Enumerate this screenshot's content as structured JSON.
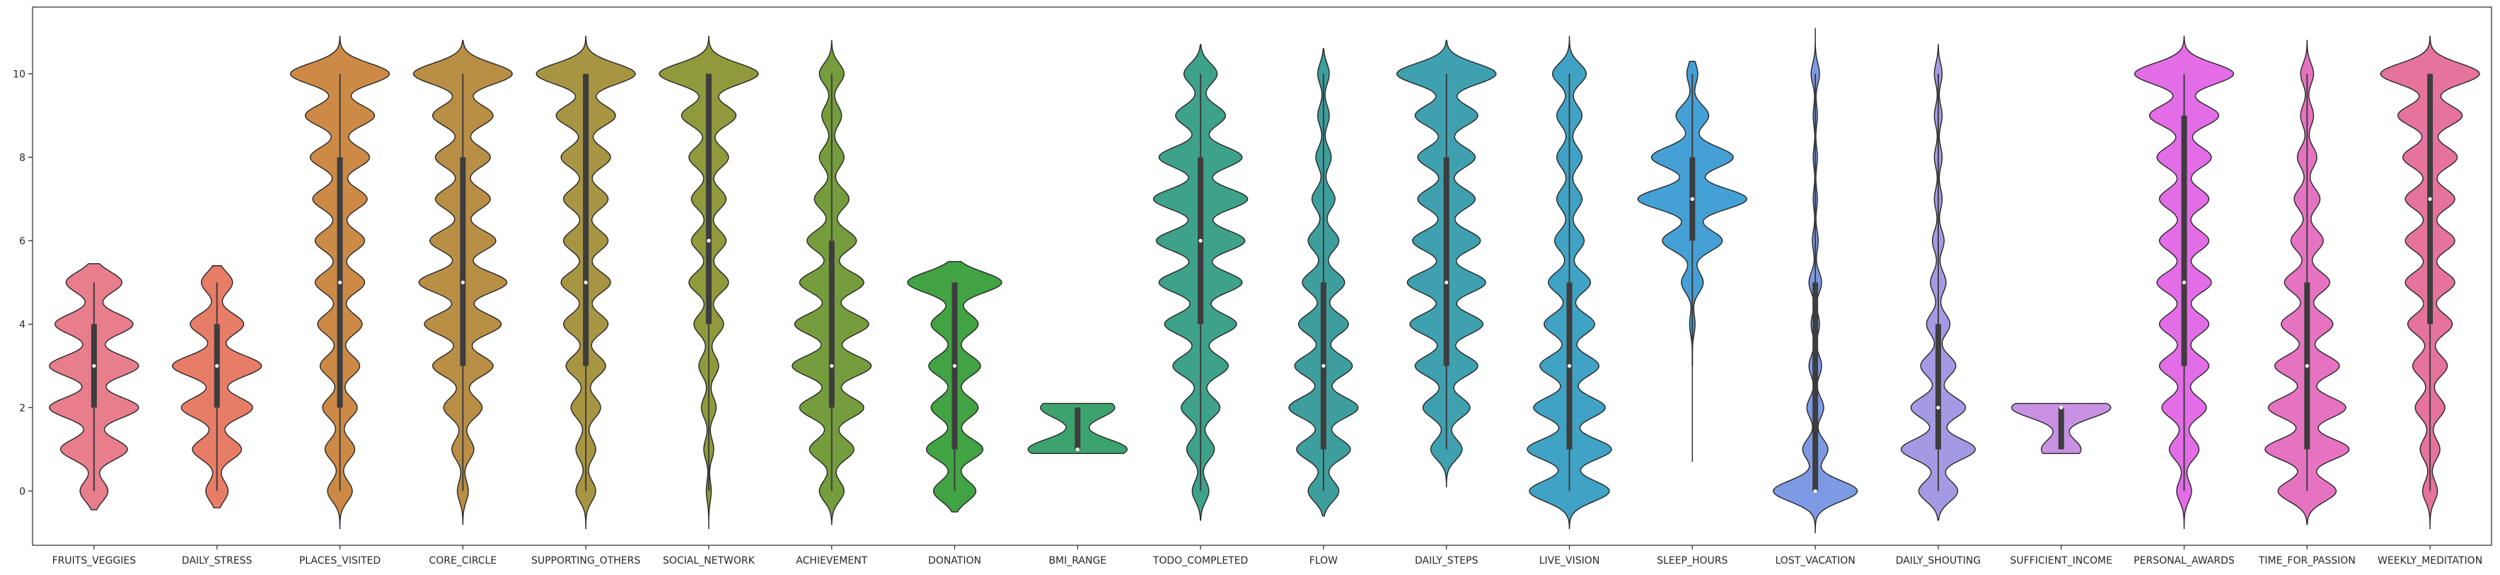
{
  "chart_data": {
    "type": "violin",
    "title": "",
    "xlabel": "",
    "ylabel": "",
    "ylim": [
      -1.3,
      11.6
    ],
    "yticks": [
      "0",
      "2",
      "4",
      "6",
      "8",
      "10"
    ],
    "grid": false,
    "legend": "none",
    "categories": [
      {
        "name": "FRUITS_VEGGIES",
        "color": "#e87d8c",
        "min": 0,
        "q1": 2,
        "median": 3,
        "q3": 4,
        "max": 5,
        "kde_range": [
          -0.45,
          5.45
        ],
        "modes": [
          0,
          1,
          2,
          3,
          4,
          5
        ],
        "mode_weights": [
          0.25,
          0.6,
          0.8,
          0.8,
          0.7,
          0.5
        ],
        "width_scale": 0.9
      },
      {
        "name": "DAILY_STRESS",
        "color": "#e87d67",
        "min": 0,
        "q1": 2,
        "median": 3,
        "q3": 4,
        "max": 5,
        "kde_range": [
          -0.4,
          5.4
        ],
        "modes": [
          0,
          1,
          2,
          3,
          4,
          5
        ],
        "mode_weights": [
          0.25,
          0.55,
          0.8,
          1.0,
          0.6,
          0.35
        ],
        "width_scale": 0.9
      },
      {
        "name": "PLACES_VISITED",
        "color": "#cc8a46",
        "min": 0,
        "q1": 2,
        "median": 5,
        "q3": 8,
        "max": 10,
        "kde_range": [
          -0.9,
          10.9
        ],
        "modes": [
          0,
          1,
          2,
          3,
          4,
          5,
          6,
          7,
          8,
          9,
          10
        ],
        "mode_weights": [
          0.25,
          0.3,
          0.35,
          0.4,
          0.45,
          0.5,
          0.5,
          0.55,
          0.6,
          0.7,
          1.0
        ],
        "width_scale": 1.0
      },
      {
        "name": "CORE_CIRCLE",
        "color": "#b98e45",
        "min": 0,
        "q1": 3,
        "median": 5,
        "q3": 8,
        "max": 10,
        "kde_range": [
          -0.8,
          10.8
        ],
        "modes": [
          0,
          1,
          2,
          3,
          4,
          5,
          6,
          7,
          8,
          9,
          10
        ],
        "mode_weights": [
          0.1,
          0.2,
          0.35,
          0.55,
          0.7,
          0.8,
          0.6,
          0.5,
          0.5,
          0.55,
          0.9
        ],
        "width_scale": 1.0
      },
      {
        "name": "SUPPORTING_OTHERS",
        "color": "#a89543",
        "min": 0,
        "q1": 3,
        "median": 5,
        "q3": 10,
        "max": 10,
        "kde_range": [
          -0.9,
          10.9
        ],
        "modes": [
          0,
          1,
          2,
          3,
          4,
          5,
          6,
          7,
          8,
          9,
          10
        ],
        "mode_weights": [
          0.2,
          0.2,
          0.3,
          0.4,
          0.45,
          0.5,
          0.45,
          0.45,
          0.5,
          0.6,
          1.0
        ],
        "width_scale": 1.0
      },
      {
        "name": "SOCIAL_NETWORK",
        "color": "#909a3c",
        "min": 0,
        "q1": 4,
        "median": 6,
        "q3": 10,
        "max": 10,
        "kde_range": [
          -0.9,
          10.9
        ],
        "modes": [
          0,
          1,
          2,
          3,
          4,
          5,
          6,
          7,
          8,
          9,
          10
        ],
        "mode_weights": [
          0.05,
          0.1,
          0.15,
          0.2,
          0.3,
          0.4,
          0.35,
          0.35,
          0.4,
          0.55,
          1.0
        ],
        "width_scale": 1.0
      },
      {
        "name": "ACHIEVEMENT",
        "color": "#759d3d",
        "min": 0,
        "q1": 2,
        "median": 3,
        "q3": 6,
        "max": 10,
        "kde_range": [
          -0.8,
          10.8
        ],
        "modes": [
          0,
          1,
          2,
          3,
          4,
          5,
          6,
          7,
          8,
          9,
          10
        ],
        "mode_weights": [
          0.25,
          0.45,
          0.65,
          0.8,
          0.75,
          0.65,
          0.5,
          0.35,
          0.25,
          0.2,
          0.25
        ],
        "width_scale": 0.8
      },
      {
        "name": "DONATION",
        "color": "#41a343",
        "min": 0,
        "q1": 1,
        "median": 3,
        "q3": 5,
        "max": 5,
        "kde_range": [
          -0.5,
          5.5
        ],
        "modes": [
          0,
          1,
          2,
          3,
          4,
          5
        ],
        "mode_weights": [
          0.45,
          0.6,
          0.5,
          0.55,
          0.5,
          1.0
        ],
        "width_scale": 0.95
      },
      {
        "name": "BMI_RANGE",
        "color": "#3da36e",
        "min": 1,
        "q1": 1,
        "median": 1,
        "q3": 2,
        "max": 2,
        "kde_range": [
          0.9,
          2.1
        ],
        "modes": [
          1,
          2
        ],
        "mode_weights": [
          1.0,
          0.75
        ],
        "width_scale": 1.0
      },
      {
        "name": "TODO_COMPLETED",
        "color": "#3ea18a",
        "min": 0,
        "q1": 4,
        "median": 6,
        "q3": 8,
        "max": 10,
        "kde_range": [
          -0.7,
          10.7
        ],
        "modes": [
          0,
          1,
          2,
          3,
          4,
          5,
          6,
          7,
          8,
          9,
          10
        ],
        "mode_weights": [
          0.15,
          0.25,
          0.35,
          0.5,
          0.65,
          0.75,
          0.8,
          0.85,
          0.75,
          0.45,
          0.3
        ],
        "width_scale": 0.95
      },
      {
        "name": "FLOW",
        "color": "#3e9e9e",
        "min": 0,
        "q1": 1,
        "median": 3,
        "q3": 5,
        "max": 10,
        "kde_range": [
          -0.6,
          10.6
        ],
        "modes": [
          0,
          1,
          2,
          3,
          4,
          5,
          6,
          7,
          8,
          9,
          10
        ],
        "mode_weights": [
          0.4,
          0.7,
          0.9,
          0.75,
          0.65,
          0.55,
          0.4,
          0.3,
          0.2,
          0.15,
          0.15
        ],
        "width_scale": 0.7
      },
      {
        "name": "DAILY_STEPS",
        "color": "#3fa0b0",
        "min": 1,
        "q1": 3,
        "median": 5,
        "q3": 8,
        "max": 10,
        "kde_range": [
          0.1,
          10.8
        ],
        "modes": [
          1,
          2,
          3,
          4,
          5,
          6,
          7,
          8,
          9,
          10
        ],
        "mode_weights": [
          0.3,
          0.45,
          0.6,
          0.7,
          0.75,
          0.65,
          0.55,
          0.55,
          0.6,
          0.95
        ],
        "width_scale": 1.0
      },
      {
        "name": "LIVE_VISION",
        "color": "#40a2c4",
        "min": 0,
        "q1": 1,
        "median": 3,
        "q3": 5,
        "max": 10,
        "kde_range": [
          -0.9,
          10.9
        ],
        "modes": [
          0,
          1,
          2,
          3,
          4,
          5,
          6,
          7,
          8,
          9,
          10
        ],
        "mode_weights": [
          0.95,
          1.0,
          0.85,
          0.7,
          0.6,
          0.5,
          0.35,
          0.3,
          0.3,
          0.3,
          0.4
        ],
        "width_scale": 0.85
      },
      {
        "name": "SLEEP_HOURS",
        "color": "#45a0d6",
        "min": 3,
        "q1": 6,
        "median": 7,
        "q3": 8,
        "max": 10,
        "kde_range": [
          0.7,
          10.3
        ],
        "modes": [
          4,
          5,
          6,
          7,
          8,
          9,
          10
        ],
        "mode_weights": [
          0.05,
          0.2,
          0.55,
          1.0,
          0.75,
          0.3,
          0.1
        ],
        "width_scale": 1.1
      },
      {
        "name": "LOST_VACATION",
        "color": "#7d9ae4",
        "min": 0,
        "q1": 0,
        "median": 0,
        "q3": 5,
        "max": 10,
        "kde_range": [
          -1.0,
          11.1
        ],
        "modes": [
          0,
          1,
          2,
          3,
          4,
          5,
          6,
          7,
          8,
          9,
          10
        ],
        "mode_weights": [
          1.0,
          0.3,
          0.2,
          0.15,
          0.1,
          0.15,
          0.07,
          0.05,
          0.05,
          0.05,
          0.1
        ],
        "width_scale": 0.85
      },
      {
        "name": "DAILY_SHOUTING",
        "color": "#a49ae4",
        "min": 0,
        "q1": 1,
        "median": 2,
        "q3": 4,
        "max": 10,
        "kde_range": [
          -0.7,
          10.7
        ],
        "modes": [
          0,
          1,
          2,
          3,
          4,
          5,
          6,
          7,
          8,
          9,
          10
        ],
        "mode_weights": [
          0.5,
          0.95,
          0.7,
          0.45,
          0.3,
          0.2,
          0.15,
          0.1,
          0.1,
          0.1,
          0.1
        ],
        "width_scale": 0.75
      },
      {
        "name": "SUFFICIENT_INCOME",
        "color": "#c991e3",
        "min": 1,
        "q1": 1,
        "median": 2,
        "q3": 2,
        "max": 2,
        "kde_range": [
          0.9,
          2.1
        ],
        "modes": [
          1,
          2
        ],
        "mode_weights": [
          0.4,
          1.0
        ],
        "width_scale": 1.0
      },
      {
        "name": "PERSONAL_AWARDS",
        "color": "#e36de6",
        "min": 0,
        "q1": 3,
        "median": 5,
        "q3": 9,
        "max": 10,
        "kde_range": [
          -0.9,
          10.9
        ],
        "modes": [
          0,
          1,
          2,
          3,
          4,
          5,
          6,
          7,
          8,
          9,
          10
        ],
        "mode_weights": [
          0.15,
          0.3,
          0.45,
          0.5,
          0.5,
          0.55,
          0.5,
          0.5,
          0.55,
          0.7,
          1.0
        ],
        "width_scale": 1.0
      },
      {
        "name": "TIME_FOR_PASSION",
        "color": "#e673c2",
        "min": 0,
        "q1": 1,
        "median": 3,
        "q3": 5,
        "max": 10,
        "kde_range": [
          -0.8,
          10.8
        ],
        "modes": [
          0,
          1,
          2,
          3,
          4,
          5,
          6,
          7,
          8,
          9,
          10
        ],
        "mode_weights": [
          0.45,
          0.65,
          0.6,
          0.5,
          0.4,
          0.35,
          0.25,
          0.2,
          0.15,
          0.1,
          0.1
        ],
        "width_scale": 0.85
      },
      {
        "name": "WEEKLY_MEDITATION",
        "color": "#e5739e",
        "min": 0,
        "q1": 4,
        "median": 7,
        "q3": 10,
        "max": 10,
        "kde_range": [
          -0.9,
          10.9
        ],
        "modes": [
          0,
          1,
          2,
          3,
          4,
          5,
          6,
          7,
          8,
          9,
          10
        ],
        "mode_weights": [
          0.15,
          0.2,
          0.3,
          0.35,
          0.45,
          0.5,
          0.5,
          0.5,
          0.55,
          0.65,
          1.0
        ],
        "width_scale": 1.0
      }
    ]
  }
}
